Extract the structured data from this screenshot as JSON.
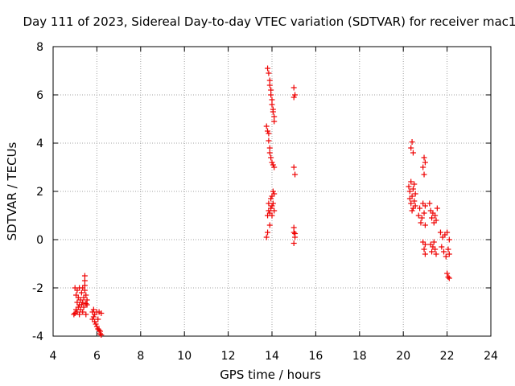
{
  "chart_data": {
    "type": "scatter",
    "title": "Day 111 of 2023, Sidereal Day-to-day VTEC variation (SDTVAR) for receiver mac1",
    "xlabel": "GPS time / hours",
    "ylabel": "SDTVAR / TECUs",
    "xlim": [
      4,
      24
    ],
    "ylim": [
      -4,
      8
    ],
    "x_ticks": [
      4,
      6,
      8,
      10,
      12,
      14,
      16,
      18,
      20,
      22,
      24
    ],
    "y_ticks": [
      -4,
      -2,
      0,
      2,
      4,
      6,
      8
    ],
    "x_tick_labels": [
      "4",
      "6",
      "8",
      "10",
      "12",
      "14",
      "16",
      "18",
      "20",
      "22",
      "24"
    ],
    "y_tick_labels": [
      "-4",
      "-2",
      "0",
      "2",
      "4",
      "6",
      "8"
    ],
    "grid": true,
    "marker": "plus",
    "color": "#ee0000",
    "series": [
      {
        "name": "SDTVAR",
        "points": [
          [
            4.95,
            -3.1
          ],
          [
            5.0,
            -2.0
          ],
          [
            5.0,
            -3.05
          ],
          [
            5.05,
            -2.3
          ],
          [
            5.05,
            -2.9
          ],
          [
            5.1,
            -2.1
          ],
          [
            5.1,
            -2.6
          ],
          [
            5.1,
            -3.0
          ],
          [
            5.15,
            -2.4
          ],
          [
            5.15,
            -2.8
          ],
          [
            5.2,
            -2.0
          ],
          [
            5.2,
            -2.7
          ],
          [
            5.2,
            -3.1
          ],
          [
            5.25,
            -2.5
          ],
          [
            5.25,
            -2.9
          ],
          [
            5.3,
            -2.2
          ],
          [
            5.3,
            -2.7
          ],
          [
            5.35,
            -2.0
          ],
          [
            5.35,
            -3.0
          ],
          [
            5.35,
            -2.6
          ],
          [
            5.4,
            -2.4
          ],
          [
            5.4,
            -2.8
          ],
          [
            5.45,
            -1.5
          ],
          [
            5.45,
            -1.7
          ],
          [
            5.45,
            -1.9
          ],
          [
            5.45,
            -2.1
          ],
          [
            5.5,
            -2.3
          ],
          [
            5.5,
            -2.65
          ],
          [
            5.5,
            -3.1
          ],
          [
            5.55,
            -2.5
          ],
          [
            5.55,
            -2.7
          ],
          [
            5.8,
            -3.0
          ],
          [
            5.8,
            -3.3
          ],
          [
            5.85,
            -2.9
          ],
          [
            5.85,
            -3.2
          ],
          [
            5.9,
            -3.1
          ],
          [
            5.9,
            -3.4
          ],
          [
            5.95,
            -3.5
          ],
          [
            6.0,
            -3.0
          ],
          [
            6.0,
            -3.6
          ],
          [
            6.05,
            -3.7
          ],
          [
            6.05,
            -3.3
          ],
          [
            6.1,
            -3.75
          ],
          [
            6.1,
            -3.0
          ],
          [
            6.15,
            -3.8
          ],
          [
            6.15,
            -3.9
          ],
          [
            6.2,
            -3.05
          ],
          [
            6.2,
            -3.95
          ],
          [
            13.8,
            7.1
          ],
          [
            13.85,
            6.9
          ],
          [
            13.9,
            6.6
          ],
          [
            13.9,
            6.4
          ],
          [
            13.95,
            6.2
          ],
          [
            13.95,
            6.0
          ],
          [
            14.0,
            5.8
          ],
          [
            14.0,
            5.6
          ],
          [
            14.05,
            5.4
          ],
          [
            14.05,
            5.3
          ],
          [
            14.1,
            5.1
          ],
          [
            14.1,
            4.9
          ],
          [
            13.75,
            4.7
          ],
          [
            13.8,
            4.5
          ],
          [
            13.85,
            4.4
          ],
          [
            13.85,
            4.1
          ],
          [
            13.9,
            3.8
          ],
          [
            13.9,
            3.6
          ],
          [
            13.95,
            3.4
          ],
          [
            14.0,
            3.2
          ],
          [
            14.05,
            3.1
          ],
          [
            14.1,
            3.0
          ],
          [
            13.75,
            0.1
          ],
          [
            13.8,
            0.3
          ],
          [
            13.8,
            1.0
          ],
          [
            13.85,
            1.2
          ],
          [
            13.85,
            1.5
          ],
          [
            13.9,
            0.6
          ],
          [
            13.9,
            1.1
          ],
          [
            13.95,
            1.3
          ],
          [
            13.95,
            1.7
          ],
          [
            14.0,
            1.0
          ],
          [
            14.0,
            1.4
          ],
          [
            14.0,
            1.8
          ],
          [
            14.05,
            1.5
          ],
          [
            14.05,
            2.0
          ],
          [
            14.1,
            1.9
          ],
          [
            14.1,
            1.2
          ],
          [
            15.0,
            6.3
          ],
          [
            15.0,
            5.9
          ],
          [
            15.05,
            6.0
          ],
          [
            15.0,
            3.0
          ],
          [
            15.05,
            2.7
          ],
          [
            15.0,
            0.5
          ],
          [
            15.0,
            0.3
          ],
          [
            15.05,
            0.1
          ],
          [
            15.0,
            -0.15
          ],
          [
            15.05,
            0.25
          ],
          [
            20.35,
            3.8
          ],
          [
            20.4,
            4.05
          ],
          [
            20.45,
            3.6
          ],
          [
            20.25,
            2.2
          ],
          [
            20.3,
            2.0
          ],
          [
            20.3,
            1.7
          ],
          [
            20.35,
            1.5
          ],
          [
            20.35,
            2.4
          ],
          [
            20.4,
            1.2
          ],
          [
            20.4,
            1.8
          ],
          [
            20.45,
            2.1
          ],
          [
            20.45,
            1.3
          ],
          [
            20.5,
            1.6
          ],
          [
            20.5,
            2.3
          ],
          [
            20.55,
            1.9
          ],
          [
            20.55,
            1.4
          ],
          [
            20.7,
            1.0
          ],
          [
            20.75,
            1.3
          ],
          [
            20.8,
            0.7
          ],
          [
            20.85,
            0.9
          ],
          [
            20.9,
            3.0
          ],
          [
            20.95,
            3.4
          ],
          [
            20.95,
            2.7
          ],
          [
            21.0,
            3.2
          ],
          [
            20.9,
            1.5
          ],
          [
            20.95,
            1.1
          ],
          [
            21.0,
            0.6
          ],
          [
            21.0,
            1.4
          ],
          [
            20.9,
            -0.1
          ],
          [
            20.95,
            -0.4
          ],
          [
            21.0,
            -0.6
          ],
          [
            21.0,
            -0.2
          ],
          [
            21.2,
            1.5
          ],
          [
            21.25,
            1.2
          ],
          [
            21.3,
            0.9
          ],
          [
            21.35,
            1.1
          ],
          [
            21.4,
            0.7
          ],
          [
            21.45,
            1.0
          ],
          [
            21.5,
            0.8
          ],
          [
            21.55,
            1.3
          ],
          [
            21.25,
            -0.2
          ],
          [
            21.3,
            -0.5
          ],
          [
            21.35,
            -0.3
          ],
          [
            21.4,
            -0.1
          ],
          [
            21.45,
            -0.4
          ],
          [
            21.5,
            -0.6
          ],
          [
            21.7,
            0.3
          ],
          [
            21.75,
            -0.3
          ],
          [
            21.8,
            0.1
          ],
          [
            21.85,
            -0.5
          ],
          [
            21.9,
            0.2
          ],
          [
            21.95,
            -0.7
          ],
          [
            22.0,
            0.3
          ],
          [
            22.05,
            -0.4
          ],
          [
            22.0,
            -1.4
          ],
          [
            22.05,
            -1.55
          ],
          [
            22.1,
            -1.6
          ],
          [
            22.1,
            0.0
          ],
          [
            22.1,
            -0.6
          ]
        ]
      }
    ]
  }
}
